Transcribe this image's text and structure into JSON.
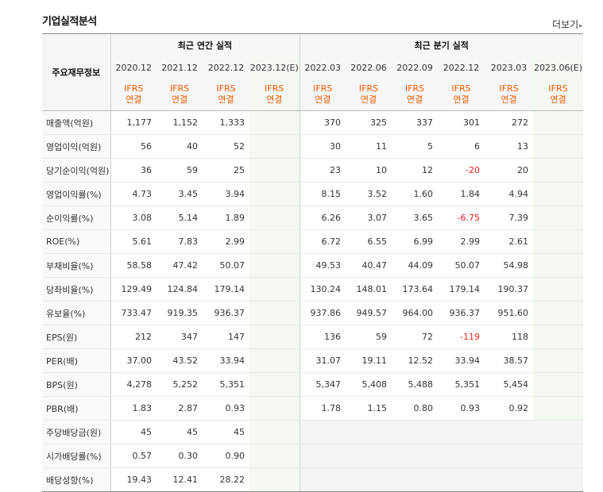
{
  "section_title": "기업실적분석",
  "more_link": "더보기",
  "table": {
    "label_header": "주요재무정보",
    "annual_group": "최근 연간 실적",
    "quarter_group": "최근 분기 실적",
    "annual_periods": [
      "2020.12",
      "2021.12",
      "2022.12",
      "2023.12(E)"
    ],
    "quarter_periods": [
      "2022.03",
      "2022.06",
      "2022.09",
      "2022.12",
      "2023.03",
      "2023.06(E)"
    ],
    "standard_line1": "IFRS",
    "standard_line2": "연결",
    "rows": [
      {
        "label": "매출액(억원)",
        "annual": [
          "1,177",
          "1,152",
          "1,333",
          ""
        ],
        "quarter": [
          "370",
          "325",
          "337",
          "301",
          "272",
          ""
        ]
      },
      {
        "label": "영업이익(억원)",
        "annual": [
          "56",
          "40",
          "52",
          ""
        ],
        "quarter": [
          "30",
          "11",
          "5",
          "6",
          "13",
          ""
        ]
      },
      {
        "label": "당기순이익(억원)",
        "annual": [
          "36",
          "59",
          "25",
          ""
        ],
        "quarter": [
          "23",
          "10",
          "12",
          "-20",
          "20",
          ""
        ]
      },
      {
        "label": "영업이익률(%)",
        "annual": [
          "4.73",
          "3.45",
          "3.94",
          ""
        ],
        "quarter": [
          "8.15",
          "3.52",
          "1.60",
          "1.84",
          "4.94",
          ""
        ]
      },
      {
        "label": "순이익률(%)",
        "annual": [
          "3.08",
          "5.14",
          "1.89",
          ""
        ],
        "quarter": [
          "6.26",
          "3.07",
          "3.65",
          "-6.75",
          "7.39",
          ""
        ]
      },
      {
        "label": "ROE(%)",
        "annual": [
          "5.61",
          "7.83",
          "2.99",
          ""
        ],
        "quarter": [
          "6.72",
          "6.55",
          "6.99",
          "2.99",
          "2.61",
          ""
        ]
      },
      {
        "label": "부채비율(%)",
        "annual": [
          "58.58",
          "47.42",
          "50.07",
          ""
        ],
        "quarter": [
          "49.53",
          "40.47",
          "44.09",
          "50.07",
          "54.98",
          ""
        ]
      },
      {
        "label": "당좌비율(%)",
        "annual": [
          "129.49",
          "124.84",
          "179.14",
          ""
        ],
        "quarter": [
          "130.24",
          "148.01",
          "173.64",
          "179.14",
          "190.37",
          ""
        ]
      },
      {
        "label": "유보율(%)",
        "annual": [
          "733.47",
          "919.35",
          "936.37",
          ""
        ],
        "quarter": [
          "937.86",
          "949.57",
          "964.00",
          "936.37",
          "951.60",
          ""
        ]
      },
      {
        "label": "EPS(원)",
        "annual": [
          "212",
          "347",
          "147",
          ""
        ],
        "quarter": [
          "136",
          "59",
          "72",
          "-119",
          "118",
          ""
        ]
      },
      {
        "label": "PER(배)",
        "annual": [
          "37.00",
          "43.52",
          "33.94",
          ""
        ],
        "quarter": [
          "31.07",
          "19.11",
          "12.52",
          "33.94",
          "38.57",
          ""
        ]
      },
      {
        "label": "BPS(원)",
        "annual": [
          "4,278",
          "5,252",
          "5,351",
          ""
        ],
        "quarter": [
          "5,347",
          "5,408",
          "5,488",
          "5,351",
          "5,454",
          ""
        ]
      },
      {
        "label": "PBR(배)",
        "annual": [
          "1.83",
          "2.87",
          "0.93",
          ""
        ],
        "quarter": [
          "1.78",
          "1.15",
          "0.80",
          "0.93",
          "0.92",
          ""
        ]
      },
      {
        "label": "주당배당금(원)",
        "annual": [
          "45",
          "45",
          "45",
          ""
        ],
        "quarter": []
      },
      {
        "label": "시가배당률(%)",
        "annual": [
          "0.57",
          "0.30",
          "0.90",
          ""
        ],
        "quarter": []
      },
      {
        "label": "배당성향(%)",
        "annual": [
          "19.43",
          "12.41",
          "28.22",
          ""
        ],
        "quarter": []
      }
    ],
    "group_starts": [
      3,
      6,
      9,
      13
    ]
  }
}
